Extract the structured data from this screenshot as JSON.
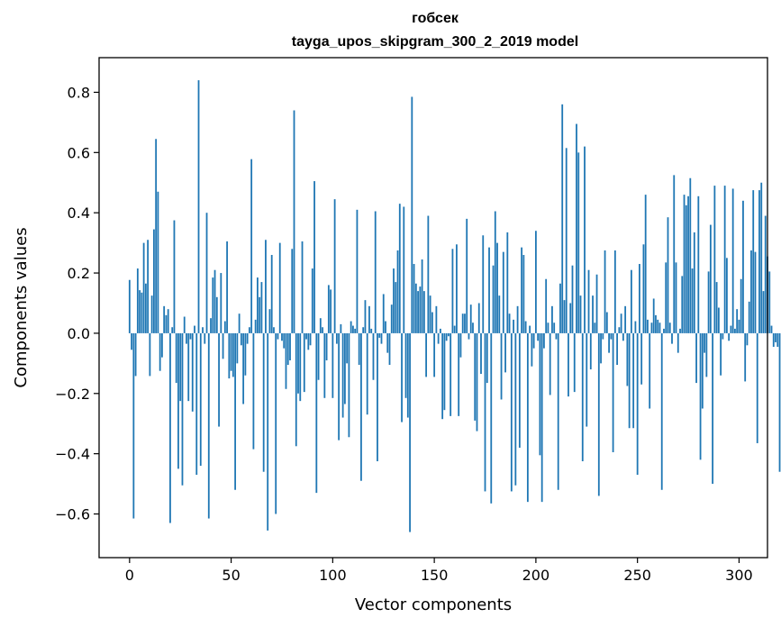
{
  "chart_data": {
    "type": "bar",
    "title": [
      "гобсек",
      "tayga_upos_skipgram_300_2_2019 model"
    ],
    "xlabel": "Vector components",
    "ylabel": "Components values",
    "xlim": [
      -15,
      314
    ],
    "ylim": [
      -0.745,
      0.915
    ],
    "xticks": [
      0,
      50,
      100,
      150,
      200,
      250,
      300
    ],
    "xtick_labels": [
      "0",
      "50",
      "100",
      "150",
      "200",
      "250",
      "300"
    ],
    "yticks": [
      -0.6,
      -0.4,
      -0.2,
      0.0,
      0.2,
      0.4,
      0.6,
      0.8
    ],
    "ytick_labels": [
      "−0.6",
      "−0.4",
      "−0.2",
      "0.0",
      "0.2",
      "0.4",
      "0.6",
      "0.8"
    ],
    "grid": false,
    "bar_color": "#1f77b4",
    "bar_width": 0.8,
    "values": [
      0.177,
      -0.055,
      -0.615,
      -0.142,
      0.215,
      0.143,
      0.135,
      0.3,
      0.165,
      0.31,
      -0.142,
      0.125,
      0.345,
      0.645,
      0.47,
      -0.125,
      -0.08,
      0.09,
      0.06,
      0.08,
      -0.63,
      0.02,
      0.375,
      -0.165,
      -0.45,
      -0.225,
      -0.505,
      0.055,
      -0.035,
      -0.225,
      -0.02,
      -0.26,
      0.025,
      -0.47,
      0.84,
      -0.44,
      0.02,
      -0.035,
      0.4,
      -0.615,
      0.05,
      0.185,
      0.21,
      0.12,
      -0.31,
      0.2,
      -0.085,
      0.04,
      0.305,
      -0.15,
      -0.125,
      -0.145,
      -0.52,
      -0.1,
      0.065,
      -0.04,
      -0.235,
      -0.14,
      -0.035,
      0.02,
      0.578,
      -0.385,
      0.045,
      0.185,
      0.12,
      0.17,
      -0.46,
      0.31,
      -0.655,
      0.08,
      0.26,
      0.02,
      -0.6,
      -0.02,
      0.3,
      -0.025,
      -0.05,
      -0.185,
      -0.105,
      -0.09,
      0.28,
      0.74,
      -0.375,
      -0.2,
      -0.225,
      0.305,
      -0.195,
      -0.02,
      -0.055,
      -0.04,
      0.215,
      0.505,
      -0.53,
      -0.155,
      0.05,
      0.02,
      -0.215,
      -0.09,
      0.16,
      0.145,
      -0.215,
      0.445,
      -0.035,
      -0.355,
      0.03,
      -0.28,
      -0.235,
      -0.1,
      -0.345,
      0.04,
      0.025,
      0.015,
      0.41,
      -0.105,
      -0.49,
      0.02,
      0.11,
      -0.27,
      0.09,
      0.015,
      -0.155,
      0.405,
      -0.425,
      -0.015,
      -0.035,
      0.13,
      0.04,
      -0.065,
      -0.105,
      0.095,
      0.215,
      0.17,
      0.275,
      0.43,
      -0.295,
      0.42,
      -0.215,
      -0.28,
      -0.66,
      0.785,
      0.23,
      0.165,
      0.14,
      0.155,
      0.245,
      0.14,
      -0.145,
      0.39,
      0.125,
      0.07,
      -0.145,
      0.09,
      -0.035,
      0.015,
      -0.285,
      -0.255,
      -0.025,
      -0.01,
      -0.275,
      0.28,
      0.025,
      0.295,
      -0.275,
      -0.08,
      0.065,
      0.065,
      0.38,
      -0.02,
      0.095,
      0.035,
      -0.29,
      -0.325,
      0.1,
      -0.135,
      0.325,
      -0.525,
      -0.165,
      0.285,
      -0.565,
      0.225,
      0.405,
      0.3,
      0.125,
      -0.22,
      0.27,
      -0.13,
      0.335,
      0.065,
      -0.525,
      0.045,
      -0.505,
      0.09,
      -0.38,
      0.285,
      0.26,
      0.04,
      -0.56,
      0.025,
      -0.11,
      -0.05,
      0.34,
      -0.025,
      -0.405,
      -0.56,
      -0.05,
      0.18,
      0.035,
      -0.205,
      0.09,
      0.035,
      -0.02,
      -0.52,
      0.165,
      0.76,
      0.11,
      0.615,
      -0.21,
      0.1,
      0.225,
      -0.195,
      0.695,
      0.6,
      0.125,
      -0.425,
      0.62,
      -0.31,
      0.21,
      -0.12,
      0.125,
      0.035,
      0.195,
      -0.54,
      -0.1,
      -0.02,
      0.275,
      0.07,
      -0.065,
      -0.02,
      -0.395,
      0.275,
      -0.105,
      0.02,
      0.065,
      -0.025,
      0.09,
      -0.175,
      -0.315,
      0.21,
      -0.315,
      0.04,
      -0.47,
      0.23,
      -0.17,
      0.295,
      0.46,
      0.045,
      -0.25,
      0.035,
      0.115,
      0.06,
      0.045,
      0.035,
      -0.52,
      0.015,
      0.235,
      0.385,
      0.035,
      -0.035,
      0.525,
      0.235,
      -0.065,
      0.015,
      0.19,
      0.46,
      0.425,
      0.455,
      0.515,
      0.215,
      0.335,
      -0.165,
      0.455,
      -0.42,
      -0.25,
      -0.065,
      -0.145,
      0.205,
      0.36,
      -0.5,
      0.49,
      0.17,
      0.085,
      -0.14,
      -0.02,
      0.49,
      0.25,
      -0.025,
      0.025,
      0.48,
      0.015,
      0.08,
      0.045,
      0.18,
      0.44,
      -0.16,
      -0.04,
      0.105,
      0.275,
      0.475,
      0.27,
      -0.365,
      0.475,
      0.5,
      0.14,
      0.39,
      0.255,
      0.205,
      0.025,
      -0.045,
      -0.03,
      -0.045,
      -0.46
    ]
  }
}
